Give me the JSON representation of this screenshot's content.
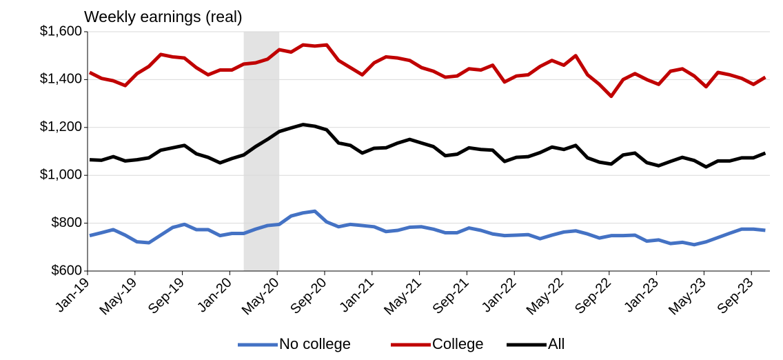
{
  "chart_data": {
    "type": "line",
    "title": "Weekly earnings (real)",
    "categories": [
      "Jan-19",
      null,
      null,
      null,
      "May-19",
      null,
      null,
      null,
      "Sep-19",
      null,
      null,
      null,
      "Jan-20",
      null,
      null,
      null,
      "May-20",
      null,
      null,
      null,
      "Sep-20",
      null,
      null,
      null,
      "Jan-21",
      null,
      null,
      null,
      "May-21",
      null,
      null,
      null,
      "Sep-21",
      null,
      null,
      null,
      "Jan-22",
      null,
      null,
      null,
      "May-22",
      null,
      null,
      null,
      "Sep-22",
      null,
      null,
      null,
      "Jan-23",
      null,
      null,
      null,
      "May-23",
      null,
      null,
      null,
      "Sep-23",
      null
    ],
    "series": [
      {
        "name": "No college",
        "color": "#4472c4",
        "values": [
          748,
          760,
          773,
          750,
          722,
          718,
          750,
          782,
          795,
          773,
          773,
          748,
          757,
          757,
          775,
          790,
          795,
          830,
          843,
          850,
          805,
          785,
          795,
          790,
          785,
          765,
          770,
          783,
          785,
          775,
          760,
          760,
          780,
          770,
          755,
          748,
          750,
          752,
          735,
          750,
          763,
          768,
          755,
          738,
          748,
          748,
          750,
          725,
          730,
          715,
          720,
          710,
          722,
          740,
          758,
          775,
          775,
          770
        ]
      },
      {
        "name": "College",
        "color": "#c00000",
        "values": [
          1430,
          1405,
          1395,
          1375,
          1425,
          1455,
          1505,
          1495,
          1490,
          1450,
          1420,
          1440,
          1440,
          1465,
          1470,
          1485,
          1525,
          1515,
          1545,
          1540,
          1545,
          1480,
          1450,
          1420,
          1470,
          1495,
          1490,
          1480,
          1450,
          1435,
          1410,
          1415,
          1445,
          1440,
          1460,
          1390,
          1415,
          1420,
          1455,
          1480,
          1460,
          1500,
          1420,
          1380,
          1330,
          1400,
          1425,
          1400,
          1380,
          1435,
          1445,
          1415,
          1370,
          1430,
          1420,
          1405,
          1380,
          1410
        ]
      },
      {
        "name": "All",
        "color": "#000000",
        "values": [
          1065,
          1063,
          1078,
          1060,
          1065,
          1073,
          1105,
          1115,
          1125,
          1090,
          1075,
          1052,
          1070,
          1085,
          1120,
          1150,
          1183,
          1198,
          1212,
          1205,
          1190,
          1135,
          1125,
          1093,
          1113,
          1115,
          1135,
          1150,
          1135,
          1120,
          1082,
          1088,
          1115,
          1108,
          1105,
          1058,
          1075,
          1078,
          1095,
          1118,
          1108,
          1125,
          1073,
          1055,
          1047,
          1085,
          1093,
          1053,
          1040,
          1058,
          1075,
          1062,
          1035,
          1060,
          1060,
          1073,
          1073,
          1093
        ]
      }
    ],
    "ylim": [
      600,
      1600
    ],
    "yticks": [
      {
        "value": 600,
        "label": "$600"
      },
      {
        "value": 800,
        "label": "$800"
      },
      {
        "value": 1000,
        "label": "$1,000"
      },
      {
        "value": 1200,
        "label": "$1,200"
      },
      {
        "value": 1400,
        "label": "$1,400"
      },
      {
        "value": 1600,
        "label": "$1,600"
      }
    ],
    "grid": true,
    "shade": [
      13,
      16
    ],
    "shade_color": "#e3e3e3",
    "legend": "bottom"
  }
}
